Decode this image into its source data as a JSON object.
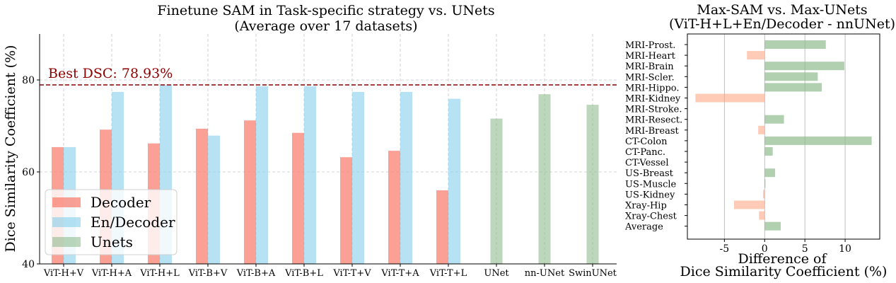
{
  "chart_data": [
    {
      "type": "bar",
      "title": "Finetune SAM in Task-specific strategy vs. UNets",
      "subtitle": "(Average over 17 datasets)",
      "xlabel": "",
      "ylabel": "Dice Similarity Coefficient (%)",
      "ylim": [
        40,
        90
      ],
      "yticks": [
        40,
        60,
        80
      ],
      "categories": [
        "ViT-H+V",
        "ViT-H+A",
        "ViT-H+L",
        "ViT-B+V",
        "ViT-B+A",
        "ViT-B+L",
        "ViT-T+V",
        "ViT-T+A",
        "ViT-T+L",
        "UNet",
        "nn-UNet",
        "SwinUNet"
      ],
      "series": [
        {
          "name": "Decoder",
          "color": "#fa8072",
          "values": [
            65.4,
            69.2,
            66.2,
            69.4,
            71.2,
            68.5,
            63.2,
            64.6,
            56.0,
            null,
            null,
            null
          ]
        },
        {
          "name": "En/Decoder",
          "color": "#87ceeb",
          "values": [
            65.4,
            77.4,
            78.9,
            67.9,
            78.6,
            78.6,
            77.4,
            77.4,
            75.9,
            null,
            null,
            null
          ]
        },
        {
          "name": "Unets",
          "color": "#8fbc8f",
          "values": [
            null,
            null,
            null,
            null,
            null,
            null,
            null,
            null,
            null,
            71.6,
            76.9,
            74.6
          ]
        }
      ],
      "reference_line": {
        "value": 78.93,
        "label": "Best DSC: 78.93%",
        "color": "#8b0000",
        "style": "dashed"
      },
      "grid": true,
      "legend": "lower-left"
    },
    {
      "type": "bar",
      "orientation": "horizontal",
      "title": "Max-SAM vs. Max-UNets",
      "subtitle": "(ViT-H+L+En/Decoder - nnUNet)",
      "xlabel": "Difference of Dice Similarity Coefficient (%)",
      "xlabel_lines": [
        "Difference of",
        "Dice Similarity Coefficient (%)"
      ],
      "ylabel": "",
      "xlim": [
        -9.6,
        14.3
      ],
      "xticks": [
        -5,
        0,
        5,
        10
      ],
      "categories": [
        "MRI-Prost.",
        "MRI-Heart",
        "MRI-Brain",
        "MRI-Scler.",
        "MRI-Hippo.",
        "MRI-Kidney",
        "MRI-Stroke.",
        "MRI-Resect.",
        "MRI-Breast",
        "CT-Colon",
        "CT-Panc.",
        "CT-Vessel",
        "US-Breast",
        "US-Muscle",
        "US-Kidney",
        "Xray-Hip",
        "Xray-Chest",
        "Average"
      ],
      "values": [
        7.6,
        -2.2,
        9.9,
        6.6,
        7.1,
        -8.6,
        0.0,
        2.4,
        -0.8,
        13.3,
        1.0,
        0.0,
        1.3,
        0.1,
        -0.2,
        -3.8,
        -0.7,
        2.0
      ],
      "colors": {
        "positive": "#8fbc8f",
        "negative": "#ffa07a"
      },
      "grid": true
    }
  ]
}
